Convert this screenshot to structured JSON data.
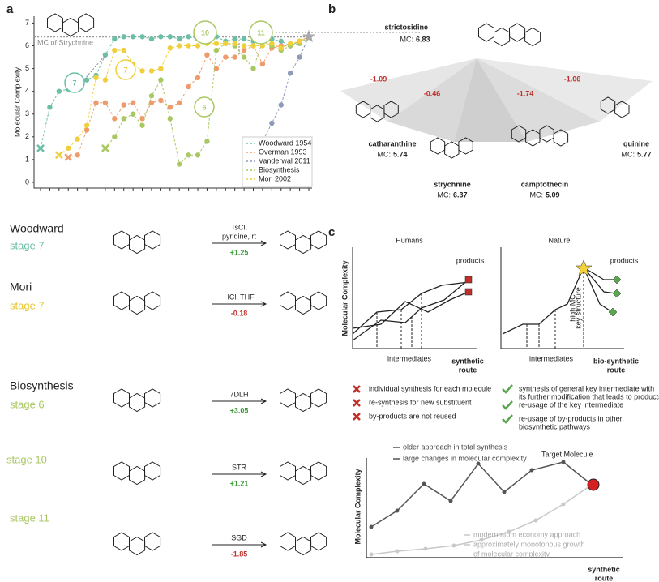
{
  "panel_labels": [
    "a",
    "b",
    "c"
  ],
  "chart_data": {
    "type": "line",
    "ylabel": "Molecular Complexity",
    "categories": [
      null,
      null,
      null,
      null,
      null,
      null,
      null,
      null,
      null,
      null,
      null,
      null,
      null,
      null,
      null,
      null,
      null,
      null,
      null,
      null,
      null,
      null,
      null,
      null,
      null,
      null,
      null,
      null,
      null,
      null
    ],
    "ylim": [
      -0.25,
      7.3
    ],
    "yticks": [
      0,
      1,
      2,
      3,
      4,
      5,
      6,
      7
    ],
    "legend": "bottom right",
    "reference": {
      "value": 6.4,
      "label": "MC of Strychnine"
    },
    "series": [
      {
        "name": "Woodward 1954",
        "color": "#6cbfa6",
        "values": [
          1.5,
          3.3,
          4.0,
          4.1,
          4.4,
          4.5,
          4.7,
          5.6,
          6.3,
          6.4,
          6.4,
          6.4,
          6.3,
          6.4,
          6.4,
          6.3,
          6.4,
          6.3,
          6.2,
          6.4,
          6.2,
          6.3,
          6.3,
          6.2,
          6.2,
          6.3,
          6.2,
          6.0,
          6.2,
          6.4
        ]
      },
      {
        "name": "Overman 1993",
        "color": "#ee9a6a",
        "values": [
          null,
          null,
          null,
          1.1,
          1.2,
          2.3,
          3.5,
          3.5,
          2.8,
          3.4,
          3.5,
          2.8,
          3.5,
          3.6,
          3.3,
          3.5,
          4.2,
          4.6,
          5.6,
          5.0,
          5.5,
          5.5,
          5.8,
          6.0,
          5.2,
          5.9,
          6.0,
          6.0,
          6.2,
          6.4
        ]
      },
      {
        "name": "Vanderwal 2011",
        "color": "#8d9bb8",
        "values": [
          null,
          null,
          null,
          null,
          null,
          null,
          null,
          null,
          null,
          null,
          null,
          null,
          null,
          null,
          null,
          null,
          null,
          null,
          null,
          null,
          null,
          null,
          null,
          0.9,
          1.8,
          2.6,
          3.4,
          4.8,
          5.5,
          6.4
        ]
      },
      {
        "name": "Biosynthesis",
        "color": "#a9c862",
        "values": [
          null,
          null,
          null,
          null,
          null,
          null,
          null,
          1.5,
          2.0,
          2.8,
          3.0,
          2.5,
          3.8,
          4.5,
          2.8,
          0.8,
          1.2,
          1.2,
          1.8,
          5.8,
          6.1,
          6.0,
          5.5,
          5.0,
          6.2,
          6.0,
          5.8,
          6.0,
          6.1,
          6.4
        ]
      },
      {
        "name": "Mori 2002",
        "color": "#f0cf3c",
        "values": [
          null,
          null,
          1.2,
          1.5,
          1.9,
          2.5,
          4.6,
          4.5,
          5.8,
          5.8,
          5.2,
          4.9,
          4.9,
          5.0,
          5.9,
          6.0,
          6.0,
          6.0,
          6.1,
          6.1,
          6.1,
          6.1,
          6.0,
          6.0,
          6.0,
          6.1,
          5.9,
          6.1,
          6.2,
          6.4
        ]
      }
    ],
    "annotations": [
      {
        "text": "7",
        "color": "#6cbfa6"
      },
      {
        "text": "7",
        "color": "#f0cf3c"
      },
      {
        "text": "6",
        "color": "#a9c862"
      },
      {
        "text": "10",
        "color": "#a9c862"
      },
      {
        "text": "11",
        "color": "#a9c862"
      }
    ]
  },
  "panel_b": {
    "source": {
      "name": "strictosidine",
      "mc_label": "MC:",
      "mc": 6.83
    },
    "deltas": [
      -1.09,
      -0.46,
      -1.74,
      -1.06
    ],
    "products": [
      {
        "name": "catharanthine",
        "mc_label": "MC:",
        "mc": 5.74
      },
      {
        "name": "strychnine",
        "mc_label": "MC:",
        "mc": 6.37
      },
      {
        "name": "camptothecin",
        "mc_label": "MC:",
        "mc": 5.09
      },
      {
        "name": "quinine",
        "mc_label": "MC:",
        "mc": 5.77
      }
    ]
  },
  "reactions": [
    {
      "group": "Woodward",
      "stage": "stage 7",
      "reagents": [
        "TsCl,",
        "pyridine, rt"
      ],
      "delta": "+1.25"
    },
    {
      "group": "Mori",
      "stage": "stage 7",
      "reagents": [
        "HCl, THF"
      ],
      "delta": "-0.18"
    },
    {
      "group": "Biosynthesis",
      "stage": "stage 6",
      "reagents": [
        "7DLH"
      ],
      "delta": "+3.05"
    },
    {
      "stage": "stage 10",
      "reagents": [
        "STR"
      ],
      "delta": "+1.21"
    },
    {
      "stage": "stage 11",
      "reagents": [
        "SGD"
      ],
      "delta": "-1.85"
    }
  ],
  "panel_c": {
    "humans": {
      "title": "Humans",
      "products": "products",
      "ylabel": "Molecular Complexity",
      "intermediates": "intermediates",
      "xlabel": [
        "synthetic",
        "route"
      ]
    },
    "nature": {
      "title": "Nature",
      "products": "products",
      "key": [
        "high MC",
        "key structure"
      ],
      "intermediates": "intermediates",
      "xlabel": [
        "bio-synthetic",
        "route"
      ]
    },
    "cons": [
      "individual synthesis for each molecule",
      "re-synthesis for new substituent",
      "by-products are not reused"
    ],
    "pros": [
      [
        "synthesis of general key intermediate with",
        "its further modification that leads to products"
      ],
      [
        "re-usage of the key intermediate"
      ],
      [
        "re-usage of by-products in other",
        "biosynthetic pathways"
      ]
    ],
    "bottom": {
      "ylabel": "Molecular Complexity",
      "xlabel": [
        "synthetic",
        "route"
      ],
      "old": [
        "older approach in total synthesis",
        "large changes in molecular complexity"
      ],
      "target": "Target Molecule",
      "modern": [
        "modern atom economy approach",
        "approximately monotonous growth",
        "of molecular complexity"
      ]
    }
  }
}
